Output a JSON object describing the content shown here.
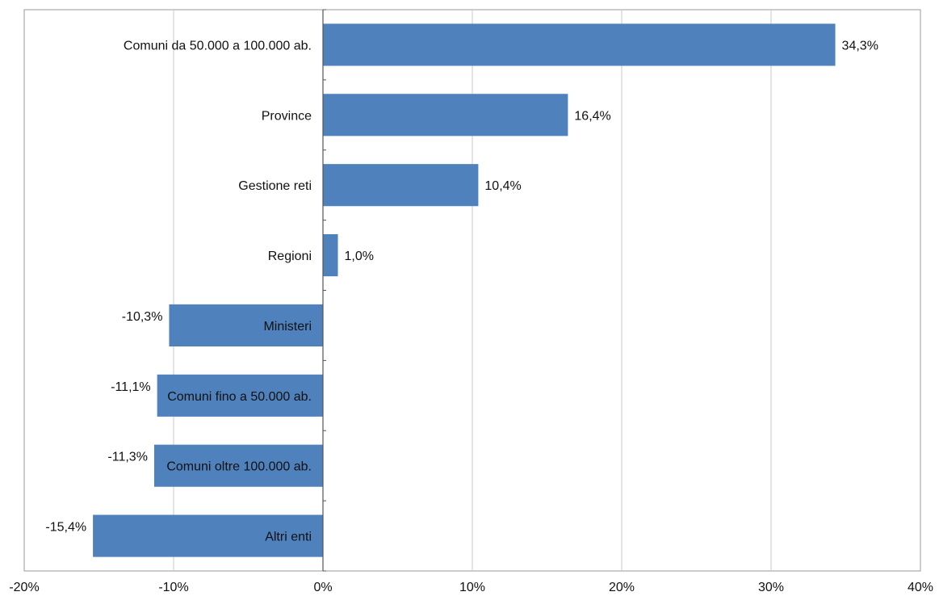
{
  "chart_data": {
    "type": "bar",
    "orientation": "horizontal",
    "categories": [
      "Comuni da 50.000 a 100.000 ab.",
      "Province",
      "Gestione reti",
      "Regioni",
      "Ministeri",
      "Comuni fino a 50.000 ab.",
      "Comuni oltre 100.000 ab.",
      "Altri enti"
    ],
    "values": [
      34.3,
      16.4,
      10.4,
      1.0,
      -10.3,
      -11.1,
      -11.3,
      -15.4
    ],
    "value_labels": [
      "34,3%",
      "16,4%",
      "10,4%",
      "1,0%",
      "-10,3%",
      "-11,1%",
      "-11,3%",
      "-15,4%"
    ],
    "xlim": [
      -20,
      40
    ],
    "xticks": [
      -20,
      -10,
      0,
      10,
      20,
      30,
      40
    ],
    "xtick_labels": [
      "-20%",
      "-10%",
      "0%",
      "10%",
      "20%",
      "30%",
      "40%"
    ],
    "bar_color": "#4f81bd",
    "grid": "vertical",
    "legend": "none",
    "title": "",
    "xlabel": "",
    "ylabel": ""
  }
}
